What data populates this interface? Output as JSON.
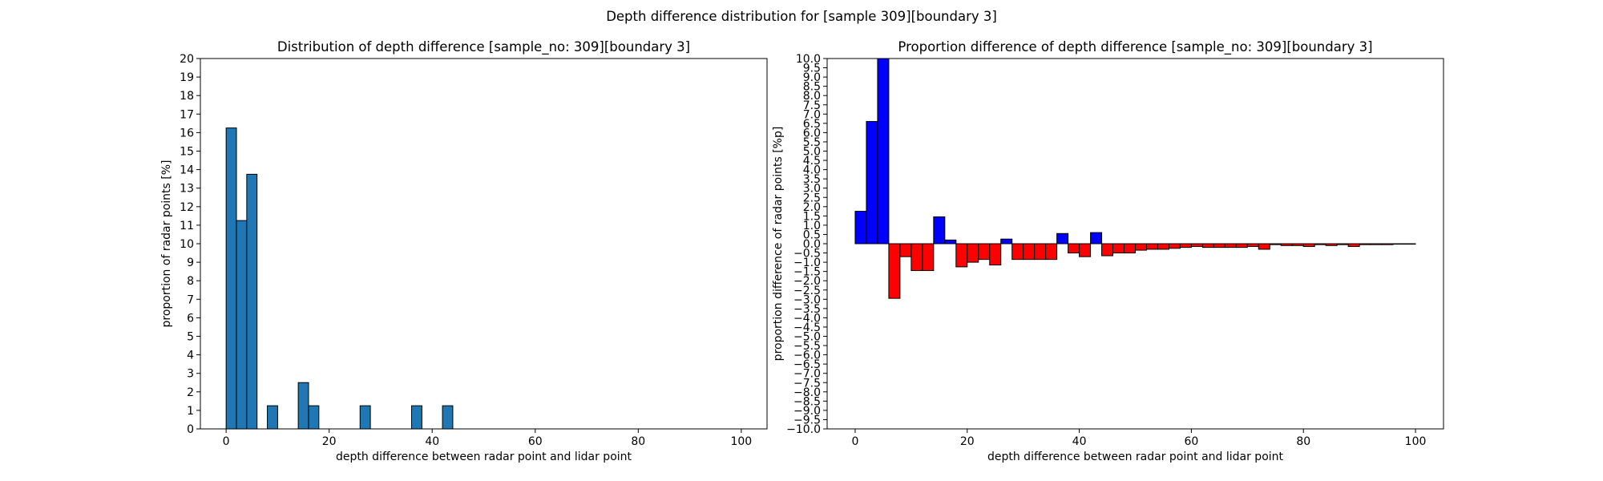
{
  "figure": {
    "title": "Depth difference distribution for [sample 309][boundary 3]"
  },
  "chart_data": [
    {
      "type": "bar",
      "title": "Distribution of depth difference [sample_no: 309][boundary 3]",
      "xlabel": "depth difference between radar point and lidar point",
      "ylabel": "proportion of radar points [%]",
      "xlim": [
        -5,
        105
      ],
      "ylim": [
        0,
        20
      ],
      "x_ticks": [
        0,
        20,
        40,
        60,
        80,
        100
      ],
      "y_ticks": [
        0,
        1,
        2,
        3,
        4,
        5,
        6,
        7,
        8,
        9,
        10,
        11,
        12,
        13,
        14,
        15,
        16,
        17,
        18,
        19,
        20
      ],
      "bin_width": 2,
      "bar_color": "#1f77b4",
      "edge_color": "#000000",
      "grid": false,
      "bins": [
        {
          "x": 0,
          "value": 16.25
        },
        {
          "x": 2,
          "value": 11.25
        },
        {
          "x": 4,
          "value": 13.75
        },
        {
          "x": 8,
          "value": 1.25
        },
        {
          "x": 14,
          "value": 2.5
        },
        {
          "x": 16,
          "value": 1.25
        },
        {
          "x": 26,
          "value": 1.25
        },
        {
          "x": 36,
          "value": 1.25
        },
        {
          "x": 42,
          "value": 1.25
        }
      ]
    },
    {
      "type": "bar",
      "title": "Proportion difference of depth difference [sample_no: 309][boundary 3]",
      "xlabel": "depth difference between radar point and lidar point",
      "ylabel": "proportion difference of radar points [%p]",
      "xlim": [
        -5,
        105
      ],
      "ylim": [
        -10,
        10
      ],
      "x_ticks": [
        0,
        20,
        40,
        60,
        80,
        100
      ],
      "y_tick_step": 0.5,
      "bin_width": 2,
      "positive_color": "#0000ff",
      "negative_color": "#ff0000",
      "edge_color": "#000000",
      "grid": false,
      "bins": [
        {
          "x": 0,
          "value": 1.75
        },
        {
          "x": 2,
          "value": 6.6
        },
        {
          "x": 4,
          "value": 10.0
        },
        {
          "x": 6,
          "value": -2.95
        },
        {
          "x": 8,
          "value": -0.7
        },
        {
          "x": 10,
          "value": -1.45
        },
        {
          "x": 12,
          "value": -1.45
        },
        {
          "x": 14,
          "value": 1.45
        },
        {
          "x": 16,
          "value": 0.2
        },
        {
          "x": 18,
          "value": -1.25
        },
        {
          "x": 20,
          "value": -1.0
        },
        {
          "x": 22,
          "value": -0.85
        },
        {
          "x": 24,
          "value": -1.15
        },
        {
          "x": 26,
          "value": 0.25
        },
        {
          "x": 28,
          "value": -0.85
        },
        {
          "x": 30,
          "value": -0.85
        },
        {
          "x": 32,
          "value": -0.85
        },
        {
          "x": 34,
          "value": -0.85
        },
        {
          "x": 36,
          "value": 0.55
        },
        {
          "x": 38,
          "value": -0.5
        },
        {
          "x": 40,
          "value": -0.7
        },
        {
          "x": 42,
          "value": 0.6
        },
        {
          "x": 44,
          "value": -0.65
        },
        {
          "x": 46,
          "value": -0.5
        },
        {
          "x": 48,
          "value": -0.5
        },
        {
          "x": 50,
          "value": -0.35
        },
        {
          "x": 52,
          "value": -0.3
        },
        {
          "x": 54,
          "value": -0.3
        },
        {
          "x": 56,
          "value": -0.25
        },
        {
          "x": 58,
          "value": -0.2
        },
        {
          "x": 60,
          "value": -0.15
        },
        {
          "x": 62,
          "value": -0.2
        },
        {
          "x": 64,
          "value": -0.2
        },
        {
          "x": 66,
          "value": -0.2
        },
        {
          "x": 68,
          "value": -0.2
        },
        {
          "x": 70,
          "value": -0.15
        },
        {
          "x": 72,
          "value": -0.3
        },
        {
          "x": 74,
          "value": -0.05
        },
        {
          "x": 76,
          "value": -0.1
        },
        {
          "x": 78,
          "value": -0.1
        },
        {
          "x": 80,
          "value": -0.15
        },
        {
          "x": 82,
          "value": -0.05
        },
        {
          "x": 84,
          "value": -0.1
        },
        {
          "x": 86,
          "value": -0.05
        },
        {
          "x": 88,
          "value": -0.15
        },
        {
          "x": 90,
          "value": -0.05
        },
        {
          "x": 92,
          "value": -0.05
        },
        {
          "x": 94,
          "value": -0.05
        },
        {
          "x": 96,
          "value": -0.02
        },
        {
          "x": 98,
          "value": -0.02
        }
      ]
    }
  ]
}
